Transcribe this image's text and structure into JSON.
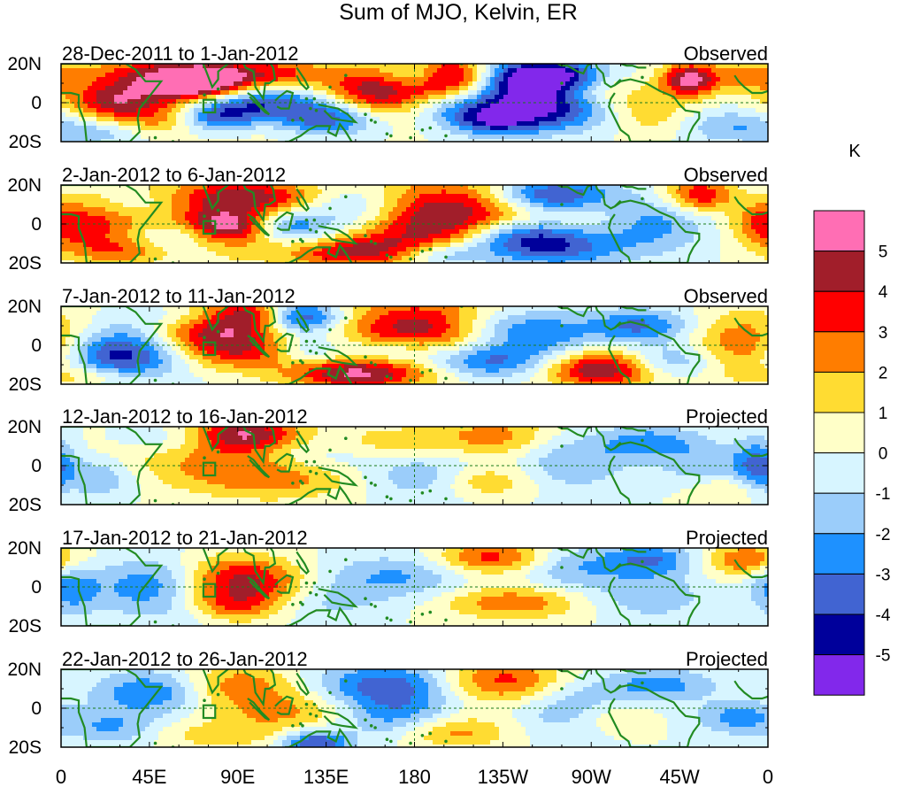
{
  "chart_data": {
    "type": "heatmap",
    "title": "Sum of MJO, Kelvin, ER",
    "units_label": "K",
    "y_tick_labels": [
      "20N",
      "0",
      "20S"
    ],
    "x_tick_labels": [
      "0",
      "45E",
      "90E",
      "135E",
      "180",
      "135W",
      "90W",
      "45W",
      "0"
    ],
    "x_range_deg": [
      0,
      360
    ],
    "y_range_deg": [
      -20,
      20
    ],
    "panels": [
      {
        "period": "28-Dec-2011 to 1-Jan-2012",
        "kind": "Observed",
        "features": [
          [
            40,
            12,
            25,
            9,
            3.2
          ],
          [
            65,
            10,
            18,
            8,
            4.5
          ],
          [
            80,
            12,
            14,
            6,
            3.5
          ],
          [
            25,
            0,
            15,
            6,
            3.2
          ],
          [
            110,
            15,
            16,
            6,
            3.2
          ],
          [
            50,
            -9,
            20,
            6,
            2.5
          ],
          [
            90,
            -10,
            20,
            7,
            2
          ],
          [
            200,
            13,
            15,
            8,
            5.5
          ],
          [
            160,
            5,
            22,
            10,
            5.2
          ],
          [
            270,
            8,
            18,
            8,
            2.5
          ],
          [
            320,
            12,
            10,
            6,
            5.4
          ],
          [
            350,
            14,
            14,
            7,
            2
          ],
          [
            300,
            -5,
            15,
            8,
            1.8
          ],
          [
            90,
            0,
            20,
            6,
            -2.5
          ],
          [
            80,
            -8,
            15,
            6,
            -5.2
          ],
          [
            120,
            -2,
            22,
            8,
            -3
          ],
          [
            140,
            -8,
            18,
            6,
            -3.3
          ],
          [
            230,
            8,
            25,
            10,
            -3.5
          ],
          [
            252,
            14,
            20,
            6,
            -5.3
          ],
          [
            250,
            -3,
            22,
            8,
            -4
          ],
          [
            220,
            -10,
            15,
            5,
            -3.2
          ],
          [
            200,
            -3,
            20,
            6,
            -2.2
          ],
          [
            20,
            -15,
            20,
            5,
            -1.8
          ],
          [
            180,
            14,
            12,
            5,
            -2.5
          ],
          [
            340,
            -12,
            18,
            6,
            -1.8
          ]
        ]
      },
      {
        "period": "2-Jan-2012 to 6-Jan-2012",
        "kind": "Observed",
        "features": [
          [
            80,
            5,
            40,
            12,
            3.4
          ],
          [
            85,
            -2,
            15,
            6,
            4
          ],
          [
            15,
            0,
            18,
            10,
            2.8
          ],
          [
            195,
            2,
            30,
            14,
            5.5
          ],
          [
            140,
            -14,
            30,
            6,
            4.6
          ],
          [
            95,
            15,
            25,
            5,
            2.6
          ],
          [
            325,
            15,
            12,
            6,
            4
          ],
          [
            355,
            0,
            10,
            8,
            1.8
          ],
          [
            30,
            -14,
            18,
            5,
            2.2
          ],
          [
            270,
            -2,
            20,
            8,
            1.5
          ],
          [
            60,
            -6,
            20,
            6,
            -2.5
          ],
          [
            120,
            -8,
            20,
            8,
            -3
          ],
          [
            150,
            8,
            20,
            8,
            -2.8
          ],
          [
            250,
            15,
            20,
            6,
            -4.5
          ],
          [
            250,
            -10,
            25,
            8,
            -4.8
          ],
          [
            195,
            -16,
            18,
            5,
            -3.5
          ],
          [
            225,
            -6,
            20,
            6,
            -2.5
          ],
          [
            300,
            0,
            20,
            10,
            -2.5
          ],
          [
            40,
            10,
            20,
            6,
            -1.8
          ],
          [
            115,
            0,
            14,
            5,
            -2.5
          ]
        ]
      },
      {
        "period": "7-Jan-2012 to 11-Jan-2012",
        "kind": "Observed",
        "features": [
          [
            82,
            8,
            25,
            10,
            5.2
          ],
          [
            100,
            16,
            12,
            5,
            3
          ],
          [
            185,
            7,
            30,
            12,
            5.4
          ],
          [
            150,
            -14,
            25,
            6,
            5.2
          ],
          [
            275,
            -12,
            20,
            7,
            5.4
          ],
          [
            350,
            0,
            20,
            12,
            3.3
          ],
          [
            100,
            -5,
            25,
            6,
            2
          ],
          [
            20,
            -16,
            20,
            4,
            2
          ],
          [
            30,
            -5,
            22,
            10,
            -5
          ],
          [
            120,
            14,
            16,
            6,
            -5.3
          ],
          [
            125,
            -4,
            15,
            6,
            -2.8
          ],
          [
            170,
            -4,
            20,
            6,
            -3.2
          ],
          [
            225,
            8,
            25,
            8,
            -3.2
          ],
          [
            215,
            -8,
            20,
            6,
            -3.8
          ],
          [
            295,
            10,
            18,
            6,
            -3.2
          ],
          [
            310,
            -8,
            18,
            6,
            -2.5
          ],
          [
            250,
            0,
            20,
            10,
            -1.5
          ],
          [
            60,
            15,
            20,
            5,
            -1.8
          ]
        ]
      },
      {
        "period": "12-Jan-2012 to 16-Jan-2012",
        "kind": "Projected",
        "features": [
          [
            85,
            7,
            30,
            12,
            3
          ],
          [
            95,
            16,
            20,
            6,
            3.8
          ],
          [
            115,
            -6,
            30,
            8,
            2.2
          ],
          [
            25,
            0,
            20,
            10,
            1.2
          ],
          [
            220,
            15,
            22,
            8,
            2.5
          ],
          [
            215,
            -8,
            18,
            6,
            2.8
          ],
          [
            165,
            12,
            20,
            6,
            1.8
          ],
          [
            340,
            -12,
            15,
            6,
            1.5
          ],
          [
            20,
            -5,
            15,
            8,
            -2.8
          ],
          [
            55,
            14,
            20,
            6,
            -2
          ],
          [
            120,
            6,
            30,
            8,
            -2
          ],
          [
            190,
            -6,
            25,
            8,
            -2.2
          ],
          [
            260,
            2,
            20,
            10,
            -2
          ],
          [
            300,
            12,
            18,
            6,
            -2.5
          ],
          [
            330,
            0,
            18,
            8,
            -1.8
          ],
          [
            355,
            0,
            8,
            10,
            -3
          ]
        ]
      },
      {
        "period": "17-Jan-2012 to 21-Jan-2012",
        "kind": "Projected",
        "features": [
          [
            90,
            6,
            20,
            8,
            3
          ],
          [
            105,
            -2,
            25,
            8,
            2.5
          ],
          [
            80,
            -10,
            20,
            6,
            2.8
          ],
          [
            220,
            15,
            20,
            6,
            3.5
          ],
          [
            230,
            -8,
            25,
            6,
            2.8
          ],
          [
            350,
            14,
            15,
            6,
            3.2
          ],
          [
            45,
            0,
            20,
            10,
            -2.8
          ],
          [
            130,
            -6,
            20,
            8,
            -2
          ],
          [
            170,
            5,
            25,
            8,
            -2.2
          ],
          [
            260,
            10,
            20,
            8,
            -2
          ],
          [
            300,
            14,
            16,
            6,
            -3
          ],
          [
            300,
            -5,
            20,
            8,
            -1.8
          ],
          [
            5,
            0,
            10,
            10,
            -2.5
          ],
          [
            65,
            -12,
            15,
            6,
            -1.5
          ]
        ]
      },
      {
        "period": "22-Jan-2012 to 26-Jan-2012",
        "kind": "Projected",
        "features": [
          [
            90,
            12,
            20,
            8,
            2.5
          ],
          [
            115,
            -2,
            25,
            8,
            2.2
          ],
          [
            225,
            14,
            22,
            8,
            3.5
          ],
          [
            200,
            -12,
            20,
            6,
            2.5
          ],
          [
            80,
            -14,
            20,
            5,
            1.5
          ],
          [
            280,
            -5,
            15,
            6,
            1.5
          ],
          [
            45,
            8,
            20,
            8,
            -3
          ],
          [
            130,
            -18,
            12,
            5,
            -4.2
          ],
          [
            165,
            12,
            25,
            8,
            -3.5
          ],
          [
            170,
            -4,
            20,
            8,
            -2.5
          ],
          [
            260,
            0,
            20,
            10,
            -2
          ],
          [
            305,
            12,
            20,
            6,
            -2.5
          ],
          [
            345,
            -5,
            15,
            6,
            -2.5
          ],
          [
            25,
            -10,
            15,
            6,
            -2
          ]
        ]
      }
    ],
    "color_levels": [
      {
        "label": "5",
        "color": "#ff6eb4"
      },
      {
        "label": "4",
        "color": "#a11e2a"
      },
      {
        "label": "3",
        "color": "#ff0000"
      },
      {
        "label": "2",
        "color": "#ff7d00"
      },
      {
        "label": "1",
        "color": "#ffdc32"
      },
      {
        "label": "0",
        "color": "#ffffc8"
      },
      {
        "label": "-1",
        "color": "#d7f5ff"
      },
      {
        "label": "-2",
        "color": "#9bcdfa"
      },
      {
        "label": "-3",
        "color": "#1e91ff"
      },
      {
        "label": "-4",
        "color": "#4164d2"
      },
      {
        "label": "-5",
        "color": "#00009b"
      },
      {
        "label": "",
        "color": "#8228eb"
      }
    ],
    "level_breaks": [
      5,
      4,
      3,
      2,
      1,
      0,
      -1,
      -2,
      -3,
      -4,
      -5,
      -99
    ],
    "land_color": "#228b22"
  }
}
